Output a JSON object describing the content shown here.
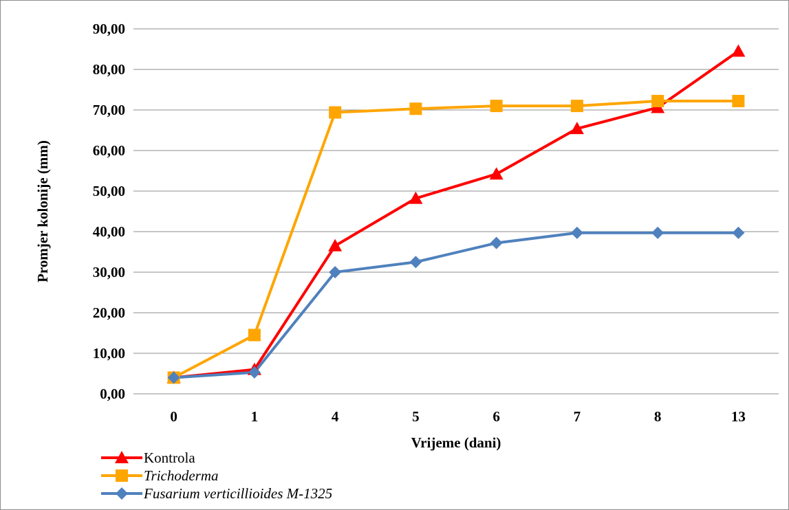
{
  "chart_data": {
    "type": "line",
    "categories": [
      "0",
      "1",
      "4",
      "5",
      "6",
      "7",
      "8",
      "13"
    ],
    "series": [
      {
        "name": "Kontrola",
        "values": [
          4.0,
          6.0,
          36.5,
          48.2,
          54.2,
          65.4,
          70.6,
          84.5
        ],
        "color": "#ff0000",
        "marker": "triangle",
        "italic": false
      },
      {
        "name": "Trichoderma",
        "values": [
          4.0,
          14.5,
          69.4,
          70.3,
          71.0,
          71.0,
          72.2,
          72.2
        ],
        "color": "#ffa500",
        "marker": "square",
        "italic": true
      },
      {
        "name": "Fusarium verticillioides M-1325",
        "values": [
          4.0,
          5.3,
          30.0,
          32.5,
          37.2,
          39.7,
          39.7,
          39.7
        ],
        "color": "#4f81bd",
        "marker": "diamond",
        "italic": true
      }
    ],
    "yticks": [
      "0,00",
      "10,00",
      "20,00",
      "30,00",
      "40,00",
      "50,00",
      "60,00",
      "70,00",
      "80,00",
      "90,00"
    ],
    "ylim": [
      0,
      90
    ],
    "xlabel": "Vrijeme (dani)",
    "ylabel": "Promjer kolonije (mm)",
    "grid": true,
    "legend_position": "bottom-left"
  }
}
